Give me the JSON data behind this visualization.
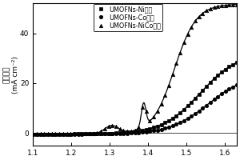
{
  "title": "",
  "xlabel": "",
  "ylabel_chinese": "电流密度",
  "ylabel_unit": "(mA cm⁻²)",
  "xlim": [
    1.1,
    1.63
  ],
  "ylim": [
    -5,
    52
  ],
  "xticks": [
    1.1,
    1.2,
    1.3,
    1.4,
    1.5,
    1.6
  ],
  "yticks": [
    0,
    20,
    40
  ],
  "legend_labels": [
    "UMOFNs-Ni电极",
    "UMOFNs-Co电极",
    "UMOFNs-NiCo电极"
  ],
  "legend_markers": [
    "s",
    "o",
    "^"
  ],
  "line_color": "black",
  "background_color": "#ffffff"
}
